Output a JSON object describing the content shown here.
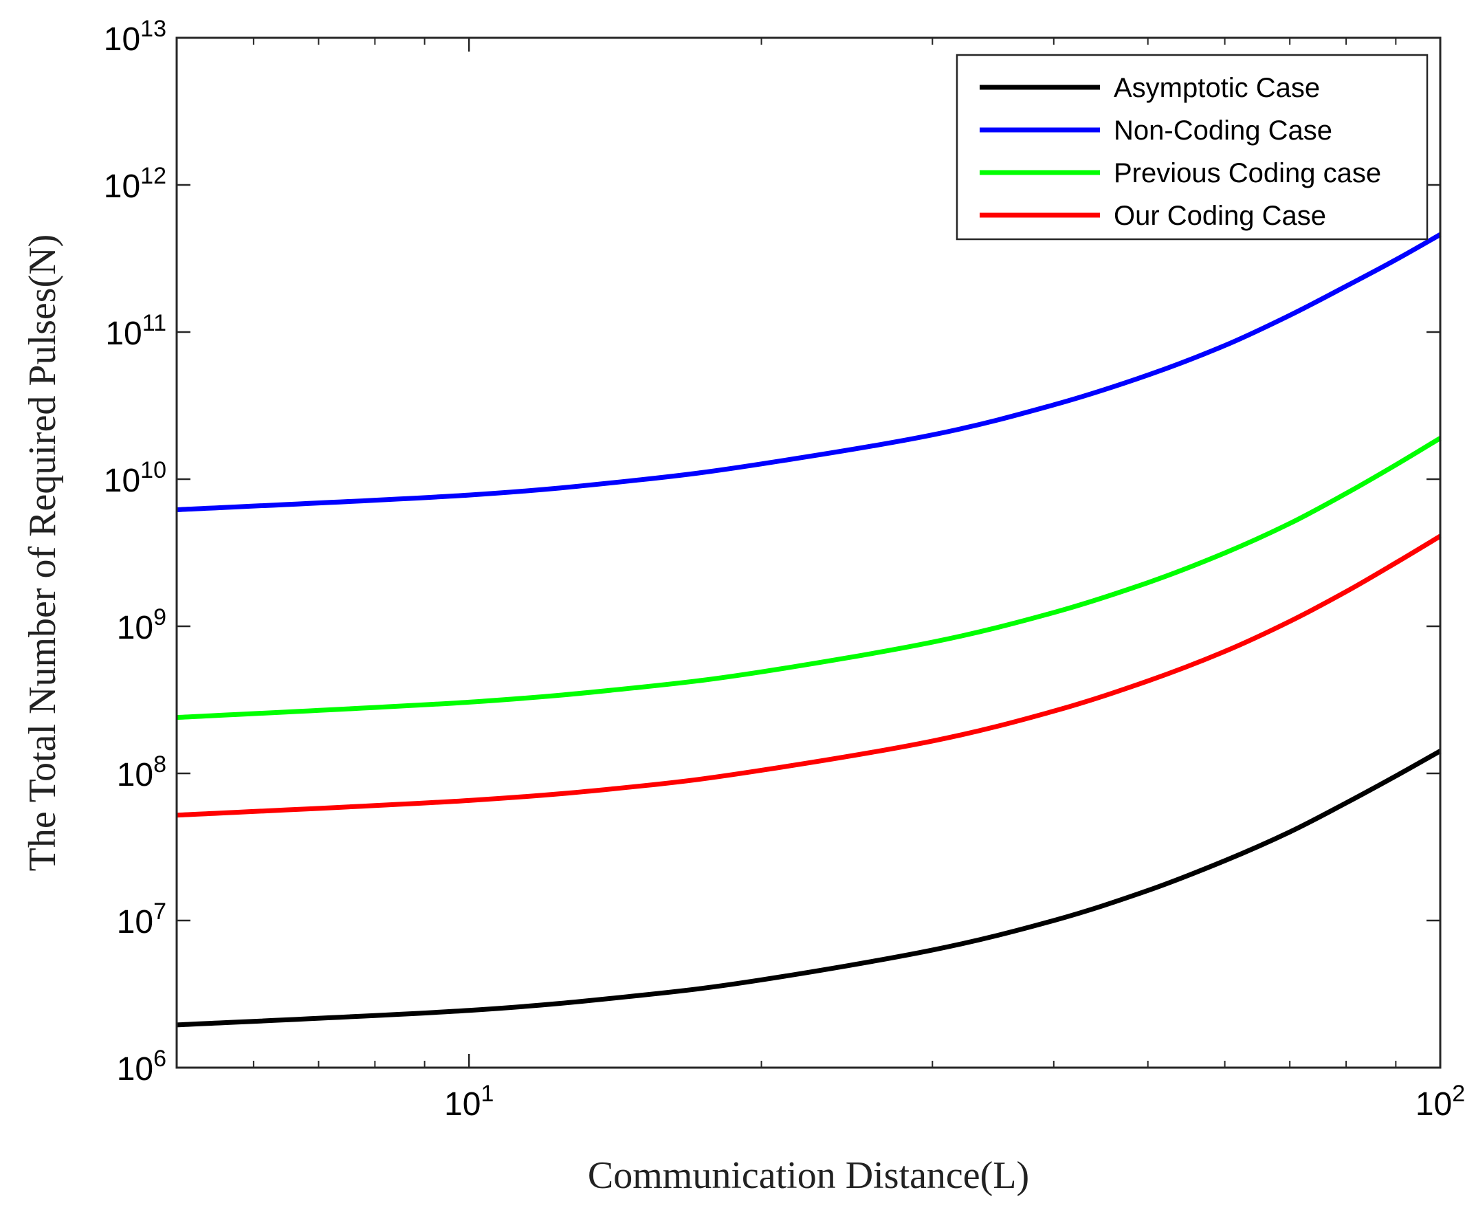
{
  "chart_data": {
    "type": "line",
    "title": "",
    "xlabel": "Communication Distance(L)",
    "ylabel": "The Total Number of Required Pulses(N)",
    "xscale": "log",
    "yscale": "log",
    "xlim": [
      5,
      100
    ],
    "ylim": [
      1000000.0,
      10000000000000.0
    ],
    "x_ticks": [
      {
        "value": 10,
        "base": "10",
        "exp": "1"
      },
      {
        "value": 100,
        "base": "10",
        "exp": "2"
      }
    ],
    "y_ticks": [
      {
        "value": 1000000.0,
        "base": "10",
        "exp": "6"
      },
      {
        "value": 10000000.0,
        "base": "10",
        "exp": "7"
      },
      {
        "value": 100000000.0,
        "base": "10",
        "exp": "8"
      },
      {
        "value": 1000000000.0,
        "base": "10",
        "exp": "9"
      },
      {
        "value": 10000000000.0,
        "base": "10",
        "exp": "10"
      },
      {
        "value": 100000000000.0,
        "base": "10",
        "exp": "11"
      },
      {
        "value": 1000000000000.0,
        "base": "10",
        "exp": "12"
      },
      {
        "value": 10000000000000.0,
        "base": "10",
        "exp": "13"
      }
    ],
    "legend_position": "top-right",
    "x": [
      5,
      10,
      15,
      20,
      30,
      40,
      50,
      60,
      70,
      80,
      90,
      100
    ],
    "series": [
      {
        "name": "Asymptotic Case",
        "color": "#000000",
        "values": [
          1950000.0,
          2450000.0,
          3100000.0,
          3950000.0,
          6300000.0,
          10000000.0,
          16000000.0,
          25500000.0,
          40000000.0,
          63000000.0,
          96000000.0,
          142000000.0
        ]
      },
      {
        "name": "Non-Coding Case",
        "color": "#0000ff",
        "values": [
          6200000000.0,
          7800000000.0,
          9900000000.0,
          12700000000.0,
          20000000000.0,
          32000000000.0,
          51000000000.0,
          81000000000.0,
          130000000000.0,
          205000000000.0,
          310000000000.0,
          460000000000.0
        ]
      },
      {
        "name": "Previous Coding case",
        "color": "#00ff00",
        "values": [
          240000000.0,
          305000000.0,
          385000000.0,
          490000000.0,
          780000000.0,
          1240000000.0,
          1980000000.0,
          3150000000.0,
          5000000000.0,
          8000000000.0,
          12500000000.0,
          19000000000.0
        ]
      },
      {
        "name": "Our Coding Case",
        "color": "#ff0000",
        "values": [
          52000000.0,
          65500000.0,
          82000000.0,
          105000000.0,
          166000000.0,
          265000000.0,
          425000000.0,
          675000000.0,
          1080000000.0,
          1720000000.0,
          2700000000.0,
          4100000000.0
        ]
      }
    ]
  }
}
